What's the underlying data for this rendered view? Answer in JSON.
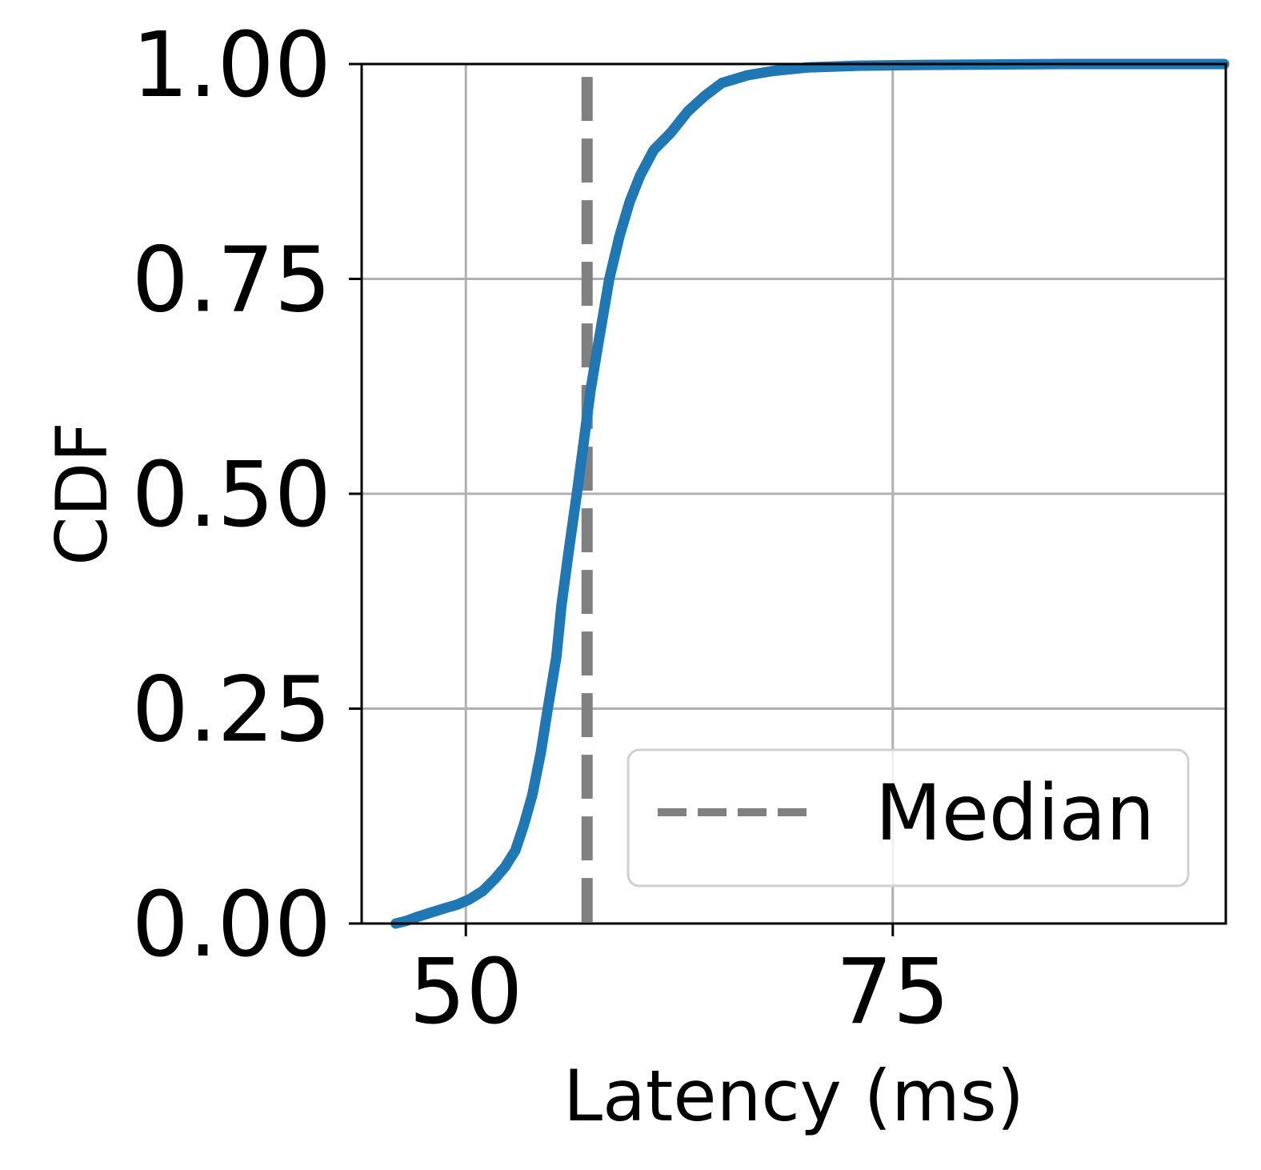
{
  "chart_data": {
    "type": "line",
    "title": "",
    "xlabel": "Latency (ms)",
    "ylabel": "CDF",
    "xlim": [
      43.9,
      94.5
    ],
    "ylim": [
      0,
      1
    ],
    "x_ticks": [
      {
        "value": 50,
        "label": "50"
      },
      {
        "value": 75,
        "label": "75"
      }
    ],
    "y_ticks": [
      {
        "value": 0,
        "label": "0.00"
      },
      {
        "value": 0.25,
        "label": "0.25"
      },
      {
        "value": 0.5,
        "label": "0.50"
      },
      {
        "value": 0.75,
        "label": "0.75"
      },
      {
        "value": 1.0,
        "label": "1.00"
      }
    ],
    "grid": true,
    "legend": {
      "placement": "lower-right",
      "entries": [
        {
          "label": "Median",
          "style": "dashed",
          "color": "#808080"
        }
      ]
    },
    "series": [
      {
        "color": "#1f77b4",
        "x": [
          45.9,
          46.5,
          47.2,
          48.0,
          48.8,
          49.5,
          50.2,
          51.0,
          51.7,
          52.3,
          52.9,
          53.4,
          53.9,
          54.4,
          54.8,
          55.3,
          55.6,
          56.0,
          56.5,
          56.9,
          57.3,
          57.8,
          58.4,
          59.0,
          59.6,
          60.2,
          61.0,
          62.0,
          63.0,
          64.0,
          65.0,
          66.5,
          68.0,
          70.0,
          73.0,
          77.0,
          85.0,
          94.4
        ],
        "y": [
          0.0,
          0.003,
          0.008,
          0.013,
          0.018,
          0.022,
          0.028,
          0.038,
          0.052,
          0.066,
          0.085,
          0.115,
          0.15,
          0.2,
          0.25,
          0.31,
          0.37,
          0.43,
          0.5,
          0.56,
          0.62,
          0.68,
          0.75,
          0.8,
          0.84,
          0.87,
          0.9,
          0.92,
          0.945,
          0.963,
          0.978,
          0.987,
          0.992,
          0.996,
          0.998,
          0.999,
          1.0,
          1.0
        ]
      }
    ],
    "median": {
      "value": 57.1,
      "color": "#808080",
      "label": "Median"
    }
  }
}
